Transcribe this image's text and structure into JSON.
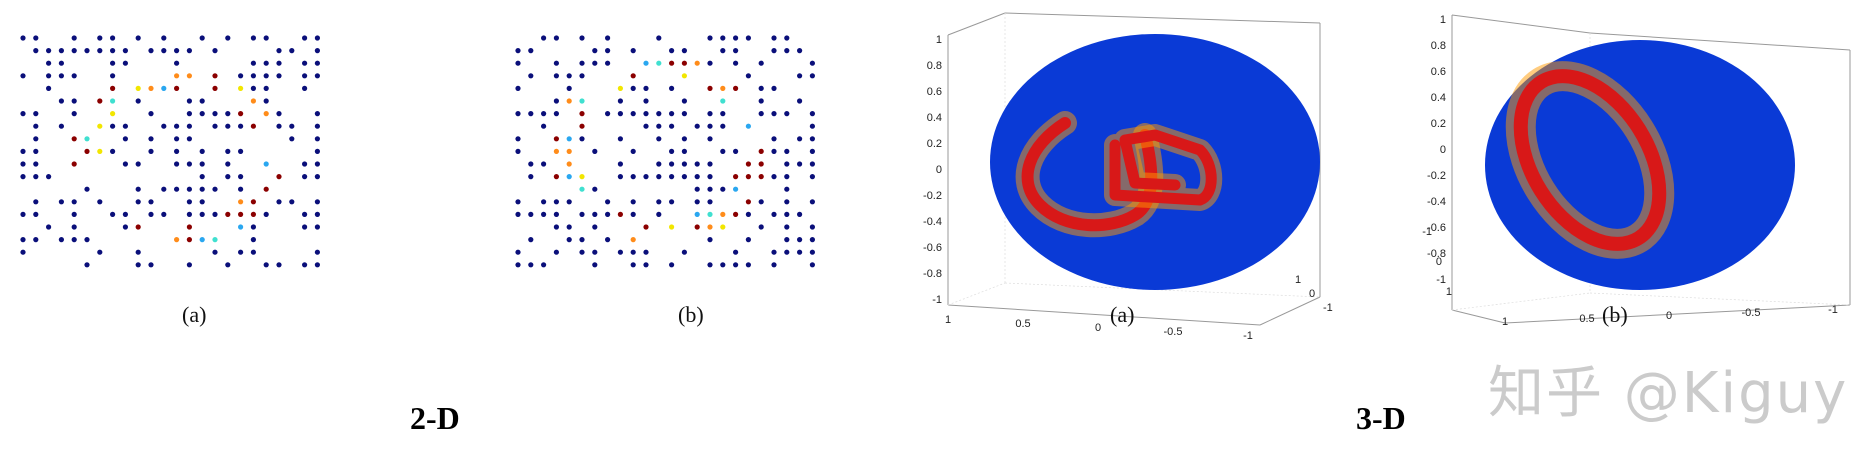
{
  "group_labels": {
    "two_d": "2-D",
    "three_d": "3-D"
  },
  "captions": [
    "(a)",
    "(b)",
    "(a)",
    "(b)"
  ],
  "watermark": "知乎 @Kiguy",
  "colors": {
    "dot_base": "#0a0f7a",
    "jet_red": "#8b0000",
    "jet_orange": "#ff8c1a",
    "jet_yellow": "#f2e600",
    "jet_cyan": "#40e0d0",
    "jet_lightblue": "#2aa7f0",
    "disk_blue": "#0a3ad6"
  },
  "plot3d_a": {
    "z_ticks": [
      "1",
      "0.8",
      "0.6",
      "0.4",
      "0.2",
      "0",
      "-0.2",
      "-0.4",
      "-0.6",
      "-0.8",
      "-1"
    ],
    "x_ticks": [
      "1",
      "0.5",
      "0",
      "-0.5",
      "-1"
    ],
    "y_ticks": [
      "1",
      "0",
      "-1"
    ]
  },
  "plot3d_b": {
    "z_ticks": [
      "1",
      "0.8",
      "0.6",
      "0.4",
      "0.2",
      "0",
      "-0.2",
      "-0.4",
      "-0.6",
      "-0.8",
      "-1"
    ],
    "x_ticks": [
      "1",
      "0.5",
      "0",
      "-0.5",
      "-1"
    ],
    "y_ticks": [
      "-1",
      "0",
      "1"
    ]
  }
}
